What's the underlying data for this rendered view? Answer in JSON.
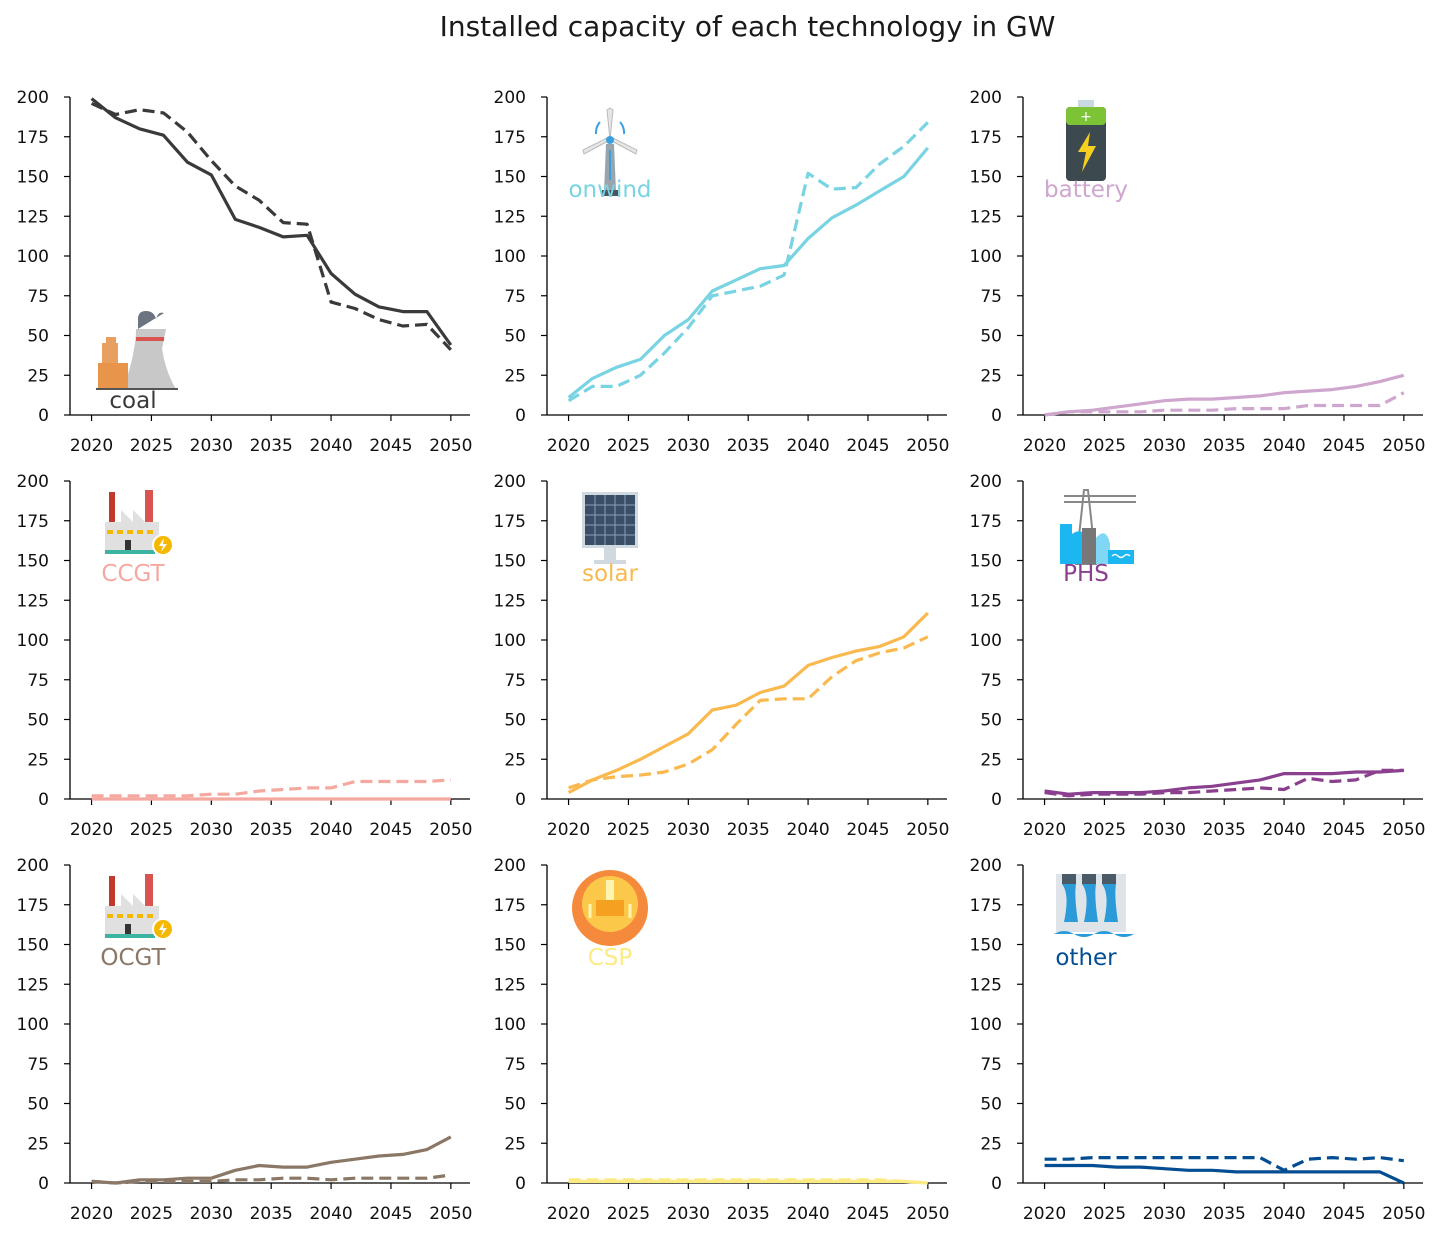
{
  "title": "Installed capacity of each technology in GW",
  "chart_data": {
    "type": "line",
    "title": "Installed capacity of each technology in GW",
    "x_ticks": [
      2020,
      2025,
      2030,
      2035,
      2040,
      2045,
      2050
    ],
    "y_ticks": [
      0,
      25,
      50,
      75,
      100,
      125,
      150,
      175,
      200
    ],
    "xlim": [
      2018.2,
      2051.6
    ],
    "ylim": [
      0,
      200
    ],
    "x": [
      2020,
      2022,
      2024,
      2026,
      2028,
      2030,
      2032,
      2034,
      2036,
      2038,
      2040,
      2042,
      2044,
      2046,
      2048,
      2050
    ],
    "line_styles": [
      "solid",
      "dashed"
    ],
    "panels": [
      {
        "label": "coal",
        "color": "#3a3a3a",
        "icon": "power-plant-cooling-tower-icon",
        "solid": [
          199,
          187,
          180,
          176,
          159,
          151,
          123,
          118,
          112,
          113,
          89,
          76,
          68,
          65,
          65,
          44
        ],
        "dashed": [
          196,
          189,
          192,
          190,
          178,
          160,
          144,
          135,
          121,
          120,
          71,
          67,
          60,
          56,
          57,
          41
        ]
      },
      {
        "label": "onwind",
        "color": "#78d3e2",
        "icon": "wind-turbine-icon",
        "solid": [
          11,
          23,
          30,
          35,
          50,
          60,
          78,
          85,
          92,
          94,
          111,
          124,
          132,
          141,
          150,
          168
        ],
        "dashed": [
          9,
          18,
          18,
          25,
          39,
          55,
          75,
          78,
          81,
          88,
          152,
          142,
          143,
          158,
          169,
          184
        ]
      },
      {
        "label": "battery",
        "color": "#cfa6ce",
        "icon": "battery-icon",
        "solid": [
          0,
          2,
          3,
          5,
          7,
          9,
          10,
          10,
          11,
          12,
          14,
          15,
          16,
          18,
          21,
          25
        ],
        "dashed": [
          0,
          2,
          2,
          2,
          2,
          3,
          3,
          3,
          4,
          4,
          4,
          6,
          6,
          6,
          6,
          14
        ]
      },
      {
        "label": "CCGT",
        "color": "#f5a8a0",
        "icon": "factory-icon",
        "solid": [
          0,
          0,
          0,
          0,
          0,
          0,
          0,
          0,
          0,
          0,
          0,
          0,
          0,
          0,
          0,
          0
        ],
        "dashed": [
          2,
          2,
          2,
          2,
          2,
          3,
          3,
          5,
          6,
          7,
          7,
          11,
          11,
          11,
          11,
          12
        ]
      },
      {
        "label": "solar",
        "color": "#f9b94f",
        "icon": "solar-panel-icon",
        "solid": [
          4,
          12,
          18,
          25,
          33,
          41,
          56,
          59,
          67,
          71,
          84,
          89,
          93,
          96,
          102,
          117
        ],
        "dashed": [
          7,
          12,
          14,
          15,
          17,
          22,
          31,
          47,
          62,
          63,
          63,
          77,
          87,
          92,
          95,
          102
        ]
      },
      {
        "label": "PHS",
        "color": "#8a3f8f",
        "icon": "pumped-hydro-icon",
        "solid": [
          5,
          3,
          4,
          4,
          4,
          5,
          7,
          8,
          10,
          12,
          16,
          16,
          16,
          17,
          17,
          18
        ],
        "dashed": [
          4,
          2,
          3,
          3,
          3,
          4,
          4,
          5,
          6,
          7,
          6,
          13,
          11,
          12,
          18,
          18
        ]
      },
      {
        "label": "OCGT",
        "color": "#8b7766",
        "icon": "factory-icon",
        "solid": [
          1,
          0,
          2,
          2,
          3,
          3,
          8,
          11,
          10,
          10,
          13,
          15,
          17,
          18,
          21,
          29
        ],
        "dashed": [
          1,
          0,
          1,
          1,
          1,
          1,
          2,
          2,
          3,
          3,
          2,
          3,
          3,
          3,
          3,
          5
        ]
      },
      {
        "label": "CSP",
        "color": "#fcea83",
        "icon": "concentrated-solar-icon",
        "solid": [
          1,
          1,
          1,
          1,
          1,
          1,
          1,
          1,
          1,
          1,
          1,
          1,
          1,
          1,
          1,
          0
        ],
        "dashed": [
          2,
          2,
          2,
          2,
          2,
          2,
          2,
          2,
          2,
          2,
          2,
          2,
          2,
          2,
          1,
          0
        ]
      },
      {
        "label": "other",
        "color": "#034d92",
        "icon": "hydro-dam-icon",
        "solid": [
          11,
          11,
          11,
          10,
          10,
          9,
          8,
          8,
          7,
          7,
          7,
          7,
          7,
          7,
          7,
          0
        ],
        "dashed": [
          15,
          15,
          16,
          16,
          16,
          16,
          16,
          16,
          16,
          16,
          8,
          15,
          16,
          15,
          16,
          14
        ]
      }
    ]
  }
}
